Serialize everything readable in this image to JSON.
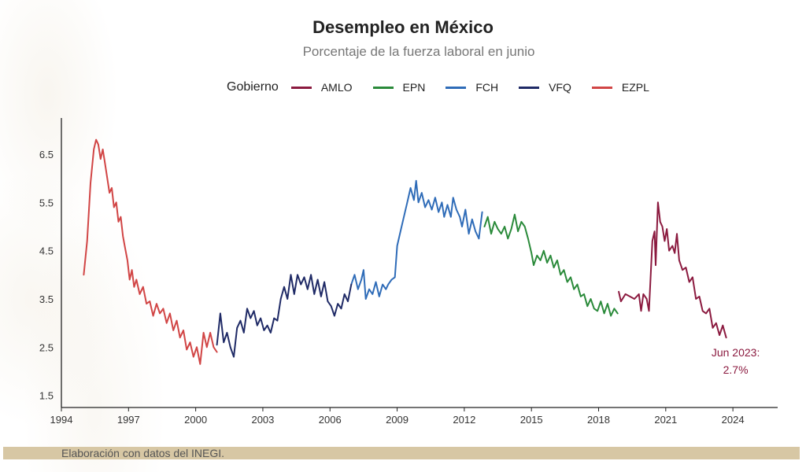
{
  "chart_data": {
    "type": "line",
    "title": "Desempleo en México",
    "subtitle": "Porcentaje de la fuerza laboral en junio",
    "legend_title": "Gobierno",
    "xlabel": "",
    "ylabel": "",
    "xlim": [
      1994,
      2026
    ],
    "ylim": [
      1.25,
      7.25
    ],
    "x_ticks": [
      1994,
      1997,
      2000,
      2003,
      2006,
      2009,
      2012,
      2015,
      2018,
      2021,
      2024
    ],
    "y_ticks": [
      1.5,
      2.5,
      3.5,
      4.5,
      5.5,
      6.5
    ],
    "legend_position": "top",
    "series": [
      {
        "name": "AMLO",
        "color": "#8b1a3f",
        "points": [
          [
            2018.9,
            3.65
          ],
          [
            2019.0,
            3.45
          ],
          [
            2019.2,
            3.6
          ],
          [
            2019.4,
            3.55
          ],
          [
            2019.6,
            3.5
          ],
          [
            2019.8,
            3.6
          ],
          [
            2019.9,
            3.25
          ],
          [
            2020.0,
            3.6
          ],
          [
            2020.15,
            3.5
          ],
          [
            2020.25,
            3.25
          ],
          [
            2020.4,
            4.7
          ],
          [
            2020.5,
            4.9
          ],
          [
            2020.55,
            4.2
          ],
          [
            2020.65,
            5.5
          ],
          [
            2020.75,
            5.1
          ],
          [
            2020.85,
            5.0
          ],
          [
            2020.95,
            4.7
          ],
          [
            2021.05,
            4.95
          ],
          [
            2021.15,
            4.5
          ],
          [
            2021.3,
            4.6
          ],
          [
            2021.4,
            4.45
          ],
          [
            2021.5,
            4.85
          ],
          [
            2021.6,
            4.3
          ],
          [
            2021.75,
            4.1
          ],
          [
            2021.9,
            4.15
          ],
          [
            2022.05,
            3.85
          ],
          [
            2022.2,
            3.95
          ],
          [
            2022.35,
            3.5
          ],
          [
            2022.5,
            3.55
          ],
          [
            2022.65,
            3.25
          ],
          [
            2022.8,
            3.2
          ],
          [
            2022.95,
            3.3
          ],
          [
            2023.1,
            2.9
          ],
          [
            2023.25,
            3.0
          ],
          [
            2023.4,
            2.75
          ],
          [
            2023.55,
            2.95
          ],
          [
            2023.7,
            2.7
          ]
        ]
      },
      {
        "name": "EPN",
        "color": "#2a8a3a",
        "points": [
          [
            2012.9,
            5.0
          ],
          [
            2013.05,
            5.2
          ],
          [
            2013.2,
            4.85
          ],
          [
            2013.35,
            5.1
          ],
          [
            2013.5,
            4.95
          ],
          [
            2013.65,
            4.85
          ],
          [
            2013.8,
            5.0
          ],
          [
            2013.95,
            4.75
          ],
          [
            2014.1,
            4.95
          ],
          [
            2014.25,
            5.25
          ],
          [
            2014.4,
            4.9
          ],
          [
            2014.55,
            5.1
          ],
          [
            2014.7,
            5.0
          ],
          [
            2014.85,
            4.75
          ],
          [
            2015.0,
            4.45
          ],
          [
            2015.1,
            4.2
          ],
          [
            2015.25,
            4.4
          ],
          [
            2015.4,
            4.3
          ],
          [
            2015.55,
            4.5
          ],
          [
            2015.7,
            4.25
          ],
          [
            2015.85,
            4.4
          ],
          [
            2016.0,
            4.15
          ],
          [
            2016.15,
            4.3
          ],
          [
            2016.3,
            4.0
          ],
          [
            2016.45,
            4.1
          ],
          [
            2016.6,
            3.85
          ],
          [
            2016.75,
            3.95
          ],
          [
            2016.9,
            3.7
          ],
          [
            2017.05,
            3.8
          ],
          [
            2017.2,
            3.55
          ],
          [
            2017.35,
            3.6
          ],
          [
            2017.5,
            3.35
          ],
          [
            2017.65,
            3.5
          ],
          [
            2017.8,
            3.3
          ],
          [
            2017.95,
            3.25
          ],
          [
            2018.1,
            3.45
          ],
          [
            2018.25,
            3.2
          ],
          [
            2018.4,
            3.4
          ],
          [
            2018.55,
            3.15
          ],
          [
            2018.7,
            3.3
          ],
          [
            2018.85,
            3.2
          ]
        ]
      },
      {
        "name": "FCH",
        "color": "#2f6cb8",
        "points": [
          [
            2006.95,
            3.8
          ],
          [
            2007.1,
            4.0
          ],
          [
            2007.25,
            3.7
          ],
          [
            2007.4,
            3.9
          ],
          [
            2007.5,
            4.1
          ],
          [
            2007.6,
            3.5
          ],
          [
            2007.75,
            3.7
          ],
          [
            2007.9,
            3.6
          ],
          [
            2008.05,
            3.85
          ],
          [
            2008.2,
            3.55
          ],
          [
            2008.35,
            3.8
          ],
          [
            2008.5,
            3.7
          ],
          [
            2008.6,
            3.8
          ],
          [
            2008.75,
            3.9
          ],
          [
            2008.9,
            3.95
          ],
          [
            2009.0,
            4.6
          ],
          [
            2009.15,
            4.9
          ],
          [
            2009.3,
            5.2
          ],
          [
            2009.45,
            5.5
          ],
          [
            2009.6,
            5.8
          ],
          [
            2009.75,
            5.55
          ],
          [
            2009.85,
            5.95
          ],
          [
            2009.95,
            5.5
          ],
          [
            2010.1,
            5.7
          ],
          [
            2010.25,
            5.4
          ],
          [
            2010.4,
            5.55
          ],
          [
            2010.55,
            5.35
          ],
          [
            2010.7,
            5.6
          ],
          [
            2010.85,
            5.3
          ],
          [
            2011.0,
            5.5
          ],
          [
            2011.1,
            5.2
          ],
          [
            2011.25,
            5.45
          ],
          [
            2011.4,
            5.2
          ],
          [
            2011.5,
            5.6
          ],
          [
            2011.65,
            5.35
          ],
          [
            2011.8,
            5.2
          ],
          [
            2011.9,
            5.0
          ],
          [
            2012.05,
            5.35
          ],
          [
            2012.2,
            4.85
          ],
          [
            2012.35,
            5.15
          ],
          [
            2012.5,
            4.9
          ],
          [
            2012.65,
            4.75
          ],
          [
            2012.8,
            5.3
          ]
        ]
      },
      {
        "name": "VFQ",
        "color": "#1f2a66",
        "points": [
          [
            2000.95,
            2.55
          ],
          [
            2001.1,
            3.2
          ],
          [
            2001.25,
            2.6
          ],
          [
            2001.4,
            2.8
          ],
          [
            2001.55,
            2.5
          ],
          [
            2001.7,
            2.3
          ],
          [
            2001.85,
            2.9
          ],
          [
            2002.0,
            3.05
          ],
          [
            2002.15,
            2.8
          ],
          [
            2002.3,
            3.3
          ],
          [
            2002.45,
            3.1
          ],
          [
            2002.6,
            3.25
          ],
          [
            2002.75,
            2.95
          ],
          [
            2002.9,
            3.1
          ],
          [
            2003.05,
            2.85
          ],
          [
            2003.2,
            2.95
          ],
          [
            2003.35,
            2.8
          ],
          [
            2003.5,
            3.1
          ],
          [
            2003.65,
            3.05
          ],
          [
            2003.8,
            3.5
          ],
          [
            2003.95,
            3.75
          ],
          [
            2004.1,
            3.5
          ],
          [
            2004.25,
            4.0
          ],
          [
            2004.4,
            3.6
          ],
          [
            2004.55,
            4.0
          ],
          [
            2004.7,
            3.8
          ],
          [
            2004.85,
            3.95
          ],
          [
            2005.0,
            3.7
          ],
          [
            2005.15,
            4.0
          ],
          [
            2005.3,
            3.6
          ],
          [
            2005.45,
            3.9
          ],
          [
            2005.6,
            3.55
          ],
          [
            2005.75,
            3.85
          ],
          [
            2005.9,
            3.45
          ],
          [
            2006.05,
            3.35
          ],
          [
            2006.2,
            3.15
          ],
          [
            2006.35,
            3.4
          ],
          [
            2006.5,
            3.3
          ],
          [
            2006.65,
            3.6
          ],
          [
            2006.8,
            3.45
          ],
          [
            2006.95,
            3.8
          ]
        ]
      },
      {
        "name": "EZPL",
        "color": "#d14545",
        "points": [
          [
            1995.0,
            4.0
          ],
          [
            1995.15,
            4.7
          ],
          [
            1995.3,
            5.9
          ],
          [
            1995.45,
            6.6
          ],
          [
            1995.55,
            6.8
          ],
          [
            1995.65,
            6.7
          ],
          [
            1995.75,
            6.4
          ],
          [
            1995.85,
            6.6
          ],
          [
            1995.95,
            6.3
          ],
          [
            1996.05,
            6.0
          ],
          [
            1996.15,
            5.7
          ],
          [
            1996.25,
            5.8
          ],
          [
            1996.35,
            5.4
          ],
          [
            1996.45,
            5.5
          ],
          [
            1996.55,
            5.1
          ],
          [
            1996.65,
            5.2
          ],
          [
            1996.75,
            4.8
          ],
          [
            1996.85,
            4.55
          ],
          [
            1996.95,
            4.3
          ],
          [
            1997.05,
            3.9
          ],
          [
            1997.15,
            4.1
          ],
          [
            1997.25,
            3.75
          ],
          [
            1997.35,
            3.9
          ],
          [
            1997.5,
            3.6
          ],
          [
            1997.65,
            3.75
          ],
          [
            1997.8,
            3.4
          ],
          [
            1997.95,
            3.45
          ],
          [
            1998.1,
            3.15
          ],
          [
            1998.25,
            3.4
          ],
          [
            1998.4,
            3.2
          ],
          [
            1998.55,
            3.3
          ],
          [
            1998.7,
            3.0
          ],
          [
            1998.85,
            3.2
          ],
          [
            1999.0,
            2.85
          ],
          [
            1999.15,
            3.05
          ],
          [
            1999.3,
            2.7
          ],
          [
            1999.45,
            2.85
          ],
          [
            1999.6,
            2.45
          ],
          [
            1999.75,
            2.6
          ],
          [
            1999.9,
            2.3
          ],
          [
            2000.05,
            2.5
          ],
          [
            2000.2,
            2.15
          ],
          [
            2000.35,
            2.8
          ],
          [
            2000.5,
            2.5
          ],
          [
            2000.65,
            2.8
          ],
          [
            2000.8,
            2.5
          ],
          [
            2000.95,
            2.4
          ]
        ]
      }
    ],
    "annotation": {
      "line1": "Jun 2023:",
      "line2": "2.7%",
      "color": "#8b1a3f",
      "anchor_x": 2023.7,
      "anchor_y": 2.7
    }
  },
  "footer": {
    "text": "Elaboración con datos del INEGI."
  }
}
